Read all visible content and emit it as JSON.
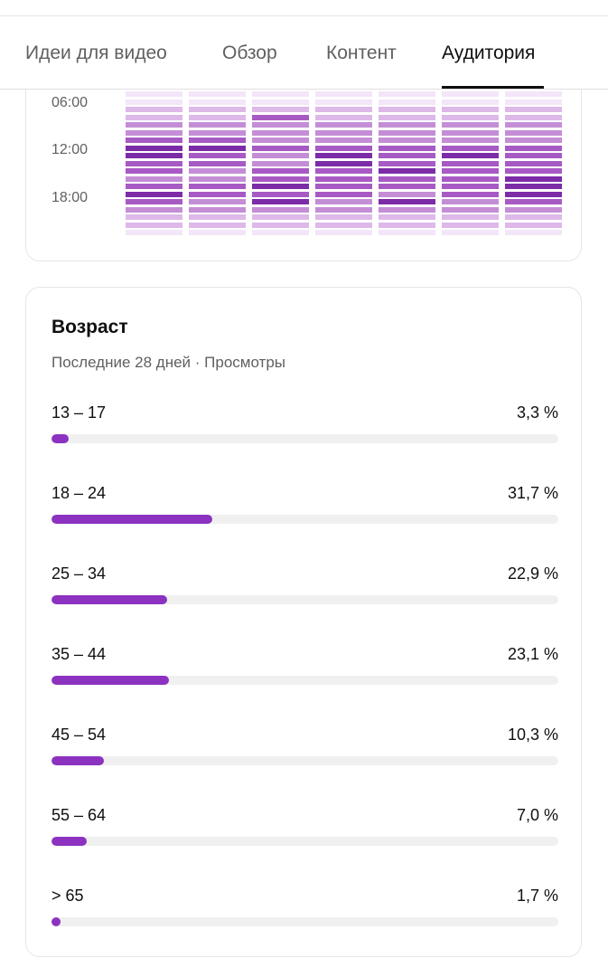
{
  "tabs": [
    {
      "label": "Идеи для видео",
      "active": false
    },
    {
      "label": "Обзор",
      "active": false
    },
    {
      "label": "Контент",
      "active": false
    },
    {
      "label": "Аудитория",
      "active": true
    }
  ],
  "heatmap": {
    "time_labels": [
      "06:00",
      "12:00",
      "18:00"
    ],
    "colors": [
      "#f3e6f8",
      "#ddb8e8",
      "#c48ed6",
      "#a85ac4",
      "#7d2ca8"
    ],
    "intensity": [
      [
        0,
        0,
        1,
        1,
        2,
        2,
        3,
        4,
        4,
        3,
        3,
        2,
        3,
        4,
        3,
        2,
        1,
        1,
        0
      ],
      [
        0,
        0,
        1,
        1,
        2,
        2,
        3,
        4,
        3,
        3,
        2,
        2,
        3,
        3,
        2,
        2,
        1,
        1,
        0
      ],
      [
        0,
        0,
        1,
        3,
        2,
        2,
        2,
        3,
        2,
        2,
        3,
        3,
        4,
        3,
        4,
        2,
        1,
        1,
        0
      ],
      [
        0,
        0,
        1,
        1,
        2,
        2,
        2,
        3,
        4,
        4,
        3,
        3,
        3,
        3,
        2,
        2,
        1,
        1,
        0
      ],
      [
        0,
        0,
        1,
        1,
        2,
        2,
        2,
        3,
        3,
        3,
        4,
        3,
        3,
        2,
        4,
        2,
        1,
        1,
        0
      ],
      [
        0,
        0,
        1,
        1,
        2,
        2,
        2,
        3,
        4,
        3,
        3,
        3,
        3,
        3,
        2,
        2,
        1,
        1,
        0
      ],
      [
        0,
        0,
        1,
        1,
        2,
        2,
        2,
        3,
        3,
        3,
        3,
        4,
        4,
        4,
        3,
        2,
        1,
        1,
        0
      ]
    ]
  },
  "age": {
    "title": "Возраст",
    "subtitle": "Последние 28 дней · Просмотры",
    "accent": "#8c32c0",
    "track": "#f0f0f0",
    "groups": [
      {
        "label": "13 – 17",
        "value": "3,3 %",
        "percent": 3.3
      },
      {
        "label": "18 – 24",
        "value": "31,7 %",
        "percent": 31.7
      },
      {
        "label": "25 – 34",
        "value": "22,9 %",
        "percent": 22.9
      },
      {
        "label": "35 – 44",
        "value": "23,1 %",
        "percent": 23.1
      },
      {
        "label": "45 – 54",
        "value": "10,3 %",
        "percent": 10.3
      },
      {
        "label": "55 – 64",
        "value": "7,0 %",
        "percent": 7.0
      },
      {
        "label": "> 65",
        "value": "1,7 %",
        "percent": 1.7
      }
    ]
  }
}
